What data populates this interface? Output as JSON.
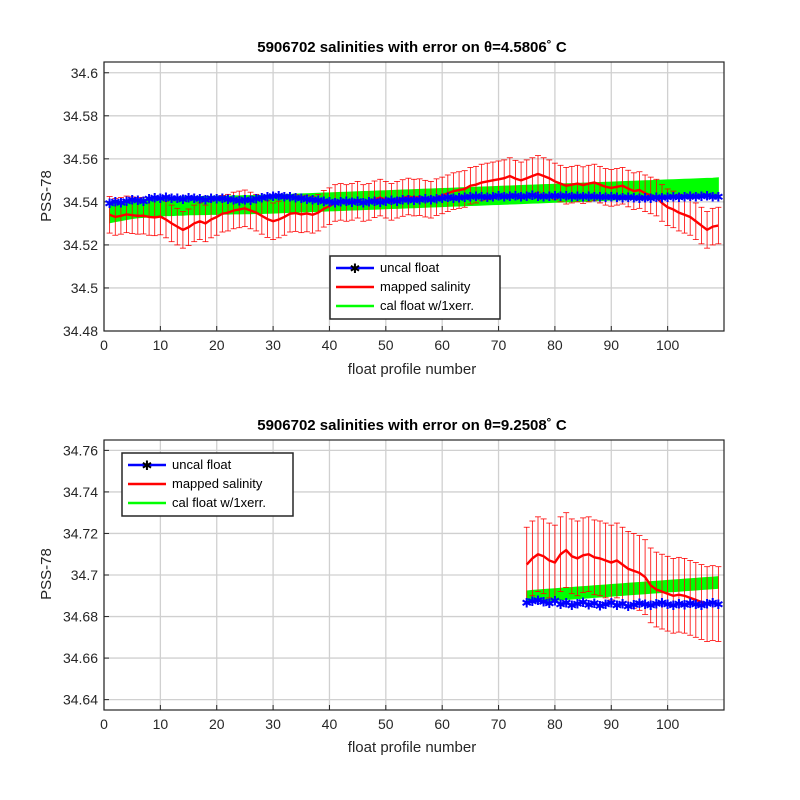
{
  "chart_data": [
    {
      "type": "line",
      "title": "5906702 salinities with error on θ=4.5806˚ C",
      "xlabel": "float profile number",
      "ylabel": "PSS-78",
      "xlim": [
        0,
        110
      ],
      "ylim": [
        34.48,
        34.605
      ],
      "xticks": [
        0,
        10,
        20,
        30,
        40,
        50,
        60,
        70,
        80,
        90,
        100
      ],
      "yticks": [
        "34.48",
        "34.5",
        "34.52",
        "34.54",
        "34.56",
        "34.58",
        "34.6"
      ],
      "grid": true,
      "legend": "bottom-center",
      "x_start": 1,
      "uncal_values": [
        34.5395,
        34.5402,
        34.5398,
        34.5405,
        34.5412,
        34.5408,
        34.5403,
        34.5415,
        34.542,
        34.5418,
        34.5422,
        34.5417,
        34.5419,
        34.5414,
        34.5421,
        34.5418,
        34.5416,
        34.5412,
        34.5419,
        34.5415,
        34.5417,
        34.5413,
        34.541,
        34.5406,
        34.5412,
        34.5408,
        34.5415,
        34.542,
        34.5425,
        34.5428,
        34.543,
        34.5426,
        34.5424,
        34.542,
        34.5418,
        34.5414,
        34.541,
        34.5408,
        34.5405,
        34.5401,
        34.5398,
        34.5402,
        34.5405,
        34.54,
        34.5403,
        34.5398,
        34.5402,
        34.5405,
        34.54,
        34.5404,
        34.5408,
        34.5405,
        34.541,
        34.5412,
        34.5408,
        34.5411,
        34.5415,
        34.5412,
        34.5416,
        34.5419,
        34.5422,
        34.5418,
        34.542,
        34.5423,
        34.5426,
        34.5428,
        34.5424,
        34.5422,
        34.5426,
        34.5429,
        34.5425,
        34.5427,
        34.543,
        34.5426,
        34.5428,
        34.5431,
        34.5428,
        34.5425,
        34.5428,
        34.543,
        34.5427,
        34.5429,
        34.5426,
        34.5428,
        34.5425,
        34.5427,
        34.5424,
        34.5426,
        34.5423,
        34.5425,
        34.5422,
        34.542,
        34.5423,
        34.5421,
        34.5418,
        34.5421,
        34.5419,
        34.5422,
        34.542,
        34.5423,
        34.5425,
        34.5422,
        34.5424,
        34.5427,
        34.5425,
        34.5428,
        34.543,
        34.5426,
        34.5424
      ],
      "mapped_values": [
        34.534,
        34.533,
        34.5335,
        34.5342,
        34.5338,
        34.5335,
        34.5336,
        34.533,
        34.5328,
        34.5332,
        34.5318,
        34.53,
        34.5285,
        34.527,
        34.5282,
        34.53,
        34.531,
        34.53,
        34.5318,
        34.533,
        34.5345,
        34.535,
        34.536,
        34.5365,
        34.537,
        34.536,
        34.535,
        34.5335,
        34.532,
        34.531,
        34.5318,
        34.533,
        34.5345,
        34.5348,
        34.5342,
        34.5346,
        34.534,
        34.535,
        34.5368,
        34.538,
        34.5395,
        34.54,
        34.5395,
        34.54,
        34.541,
        34.5395,
        34.54,
        34.5412,
        34.542,
        34.541,
        34.54,
        34.541,
        34.5418,
        34.5425,
        34.542,
        34.5422,
        34.5415,
        34.541,
        34.5422,
        34.543,
        34.544,
        34.545,
        34.5455,
        34.546,
        34.5475,
        34.548,
        34.549,
        34.5495,
        34.55,
        34.5505,
        34.551,
        34.552,
        34.5508,
        34.55,
        34.551,
        34.552,
        34.553,
        34.552,
        34.551,
        34.5495,
        34.5485,
        34.5475,
        34.548,
        34.5485,
        34.5478,
        34.5485,
        34.549,
        34.548,
        34.547,
        34.5465,
        34.547,
        34.5475,
        34.5462,
        34.545,
        34.5455,
        34.544,
        34.543,
        34.542,
        34.5395,
        34.5375,
        34.5365,
        34.535,
        34.534,
        34.533,
        34.531,
        34.529,
        34.527,
        34.5285,
        34.529
      ],
      "mapped_err": 0.0085,
      "cal_values": [
        34.5345,
        34.535,
        34.5355,
        34.536,
        34.5365,
        34.5368,
        34.537,
        34.5372,
        34.5374,
        34.5376,
        34.5378,
        34.5378,
        34.538,
        34.538,
        34.5382,
        34.5382,
        34.5383,
        34.5383,
        34.5384,
        34.5384,
        34.5385,
        34.5385,
        34.5386,
        34.5386,
        34.5387,
        34.5387,
        34.5388,
        34.5388,
        34.5389,
        34.539,
        34.5391,
        34.5392,
        34.5393,
        34.5394,
        34.5395,
        34.5396,
        34.5397,
        34.5398,
        34.5399,
        34.54,
        34.5401,
        34.5402,
        34.5403,
        34.5404,
        34.5405,
        34.5406,
        34.5407,
        34.5408,
        34.5409,
        34.541,
        34.5411,
        34.5412,
        34.5413,
        34.5414,
        34.5415,
        34.5416,
        34.5417,
        34.5418,
        34.5419,
        34.542,
        34.5421,
        34.5422,
        34.5423,
        34.5424,
        34.5425,
        34.5426,
        34.5427,
        34.5428,
        34.5429,
        34.543,
        34.5431,
        34.5432,
        34.5433,
        34.5434,
        34.5435,
        34.5436,
        34.5437,
        34.5438,
        34.5439,
        34.544,
        34.5441,
        34.5442,
        34.5443,
        34.5444,
        34.5445,
        34.5446,
        34.5447,
        34.5448,
        34.5449,
        34.545,
        34.5451,
        34.5452,
        34.5453,
        34.5454,
        34.5455,
        34.5456,
        34.5457,
        34.5458,
        34.5459,
        34.546,
        34.5461,
        34.5462,
        34.5463,
        34.5464,
        34.5465,
        34.5466,
        34.5467,
        34.5468,
        34.547
      ],
      "cal_err": 0.0042,
      "series_colors": {
        "uncal": "#0000ff",
        "mapped": "#ff0000",
        "cal": "#00ff00"
      },
      "legend_entries": [
        "uncal float",
        "mapped salinity",
        "cal float w/1xerr."
      ]
    },
    {
      "type": "line",
      "title": "5906702 salinities with error on θ=9.2508˚ C",
      "xlabel": "float profile number",
      "ylabel": "PSS-78",
      "xlim": [
        0,
        110
      ],
      "ylim": [
        34.635,
        34.765
      ],
      "xticks": [
        0,
        10,
        20,
        30,
        40,
        50,
        60,
        70,
        80,
        90,
        100
      ],
      "yticks": [
        "34.64",
        "34.66",
        "34.68",
        "34.7",
        "34.72",
        "34.74",
        "34.76"
      ],
      "grid": true,
      "legend": "top-left",
      "x_start": 75,
      "uncal_values": [
        34.6868,
        34.6875,
        34.688,
        34.6872,
        34.6865,
        34.6878,
        34.686,
        34.6868,
        34.6855,
        34.6862,
        34.687,
        34.6858,
        34.6865,
        34.6852,
        34.686,
        34.6868,
        34.6855,
        34.6862,
        34.685,
        34.6858,
        34.6865,
        34.686,
        34.6855,
        34.6862,
        34.6868,
        34.686,
        34.6855,
        34.6862,
        34.6858,
        34.6865,
        34.686,
        34.6855,
        34.6862,
        34.6868,
        34.686
      ],
      "mapped_values": [
        34.705,
        34.708,
        34.71,
        34.709,
        34.707,
        34.706,
        34.71,
        34.712,
        34.709,
        34.708,
        34.7095,
        34.71,
        34.7085,
        34.708,
        34.707,
        34.706,
        34.707,
        34.705,
        34.703,
        34.702,
        34.701,
        34.699,
        34.695,
        34.693,
        34.692,
        34.691,
        34.69,
        34.6905,
        34.69,
        34.689,
        34.688,
        34.687,
        34.686,
        34.6865,
        34.686
      ],
      "mapped_err": 0.018,
      "cal_values": [
        34.6895,
        34.6898,
        34.69,
        34.6902,
        34.6904,
        34.6906,
        34.6908,
        34.691,
        34.6912,
        34.6914,
        34.6916,
        34.6918,
        34.692,
        34.6922,
        34.6924,
        34.6926,
        34.6928,
        34.693,
        34.6932,
        34.6934,
        34.6936,
        34.6938,
        34.694,
        34.6942,
        34.6944,
        34.6946,
        34.6948,
        34.695,
        34.6952,
        34.6954,
        34.6956,
        34.6958,
        34.696,
        34.6962,
        34.6964
      ],
      "cal_err": 0.0028,
      "series_colors": {
        "uncal": "#0000ff",
        "mapped": "#ff0000",
        "cal": "#00ff00"
      },
      "legend_entries": [
        "uncal float",
        "mapped salinity",
        "cal float w/1xerr."
      ]
    }
  ]
}
